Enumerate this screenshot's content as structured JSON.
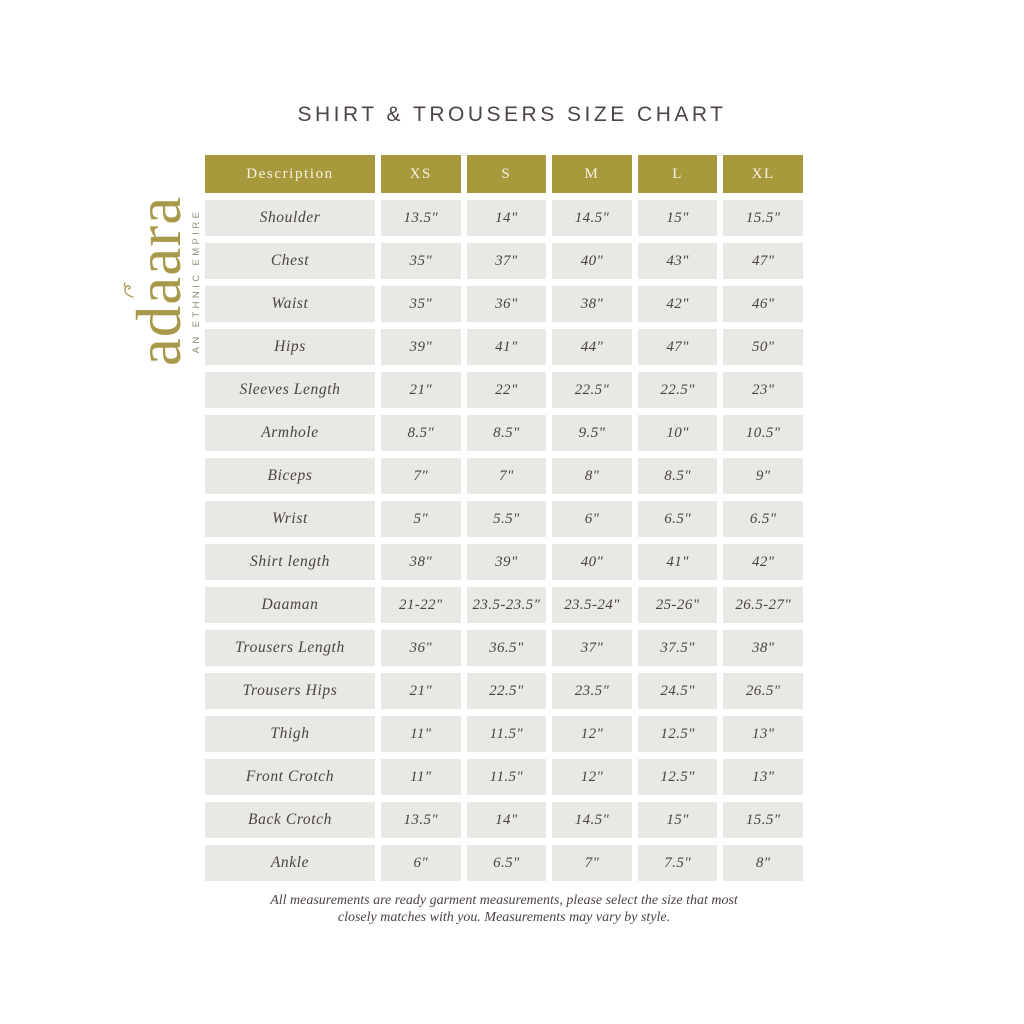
{
  "page": {
    "title": "SHIRT & TROUSERS SIZE CHART",
    "footnote_line1": "All measurements are ready garment measurements, please select the size that most",
    "footnote_line2": "closely matches with you. Measurements may vary by style."
  },
  "logo": {
    "brand_full": "adaara",
    "brand_prefix": "ad",
    "brand_accent_letter": "a",
    "brand_suffix": "ara",
    "tagline": "AN ETHNIC EMPIRE",
    "ornament_icon": "crown-swirl-icon"
  },
  "colors": {
    "accent_olive": "#a9993d",
    "logo_gold": "#a8994a",
    "row_background": "#e8e8e5",
    "header_text": "#f7f2e2",
    "text_dark": "#4b4340"
  },
  "chart_data": {
    "type": "table",
    "title": "SHIRT & TROUSERS SIZE CHART",
    "headers": [
      "Description",
      "XS",
      "S",
      "M",
      "L",
      "XL"
    ],
    "rows": [
      {
        "label": "Shoulder",
        "values": [
          "13.5\"",
          "14\"",
          "14.5\"",
          "15\"",
          "15.5\""
        ]
      },
      {
        "label": "Chest",
        "values": [
          "35\"",
          "37\"",
          "40\"",
          "43\"",
          "47\""
        ]
      },
      {
        "label": "Waist",
        "values": [
          "35\"",
          "36\"",
          "38\"",
          "42\"",
          "46\""
        ]
      },
      {
        "label": "Hips",
        "values": [
          "39\"",
          "41\"",
          "44\"",
          "47\"",
          "50\""
        ]
      },
      {
        "label": "Sleeves Length",
        "values": [
          "21\"",
          "22\"",
          "22.5\"",
          "22.5\"",
          "23\""
        ]
      },
      {
        "label": "Armhole",
        "values": [
          "8.5\"",
          "8.5\"",
          "9.5\"",
          "10\"",
          "10.5\""
        ]
      },
      {
        "label": "Biceps",
        "values": [
          "7\"",
          "7\"",
          "8\"",
          "8.5\"",
          "9\""
        ]
      },
      {
        "label": "Wrist",
        "values": [
          "5\"",
          "5.5\"",
          "6\"",
          "6.5\"",
          "6.5\""
        ]
      },
      {
        "label": "Shirt length",
        "values": [
          "38\"",
          "39\"",
          "40\"",
          "41\"",
          "42\""
        ]
      },
      {
        "label": "Daaman",
        "values": [
          "21-22\"",
          "23.5-23.5\"",
          "23.5-24\"",
          "25-26\"",
          "26.5-27\""
        ]
      },
      {
        "label": "Trousers Length",
        "values": [
          "36\"",
          "36.5\"",
          "37\"",
          "37.5\"",
          "38\""
        ]
      },
      {
        "label": "Trousers Hips",
        "values": [
          "21\"",
          "22.5\"",
          "23.5\"",
          "24.5\"",
          "26.5\""
        ]
      },
      {
        "label": "Thigh",
        "values": [
          "11\"",
          "11.5\"",
          "12\"",
          "12.5\"",
          "13\""
        ]
      },
      {
        "label": "Front Crotch",
        "values": [
          "11\"",
          "11.5\"",
          "12\"",
          "12.5\"",
          "13\""
        ]
      },
      {
        "label": "Back Crotch",
        "values": [
          "13.5\"",
          "14\"",
          "14.5\"",
          "15\"",
          "15.5\""
        ]
      },
      {
        "label": "Ankle",
        "values": [
          "6\"",
          "6.5\"",
          "7\"",
          "7.5\"",
          "8\""
        ]
      }
    ]
  }
}
